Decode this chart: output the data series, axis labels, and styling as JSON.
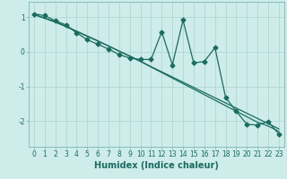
{
  "xlabel": "Humidex (Indice chaleur)",
  "background_color": "#ceecea",
  "grid_color": "#b0d8d4",
  "line_color": "#1a6b60",
  "x": [
    0,
    1,
    2,
    3,
    4,
    5,
    6,
    7,
    8,
    9,
    10,
    11,
    12,
    13,
    14,
    15,
    16,
    17,
    18,
    19,
    20,
    21,
    22,
    23
  ],
  "y_main": [
    1.1,
    1.05,
    0.9,
    0.78,
    0.55,
    0.35,
    0.22,
    0.08,
    -0.08,
    -0.18,
    -0.22,
    -0.22,
    0.58,
    -0.38,
    0.92,
    -0.32,
    -0.28,
    0.12,
    -1.32,
    -1.72,
    -2.1,
    -2.12,
    -2.02,
    -2.38
  ],
  "y_trend1": [
    1.08,
    0.98,
    0.87,
    0.74,
    0.6,
    0.46,
    0.32,
    0.17,
    0.02,
    -0.12,
    -0.27,
    -0.43,
    -0.58,
    -0.73,
    -0.88,
    -1.03,
    -1.18,
    -1.33,
    -1.48,
    -1.63,
    -1.78,
    -1.93,
    -2.08,
    -2.23
  ],
  "y_trend2": [
    1.08,
    0.97,
    0.86,
    0.73,
    0.59,
    0.45,
    0.31,
    0.17,
    0.02,
    -0.13,
    -0.28,
    -0.44,
    -0.6,
    -0.76,
    -0.92,
    -1.08,
    -1.24,
    -1.4,
    -1.56,
    -1.72,
    -1.88,
    -2.04,
    -2.15,
    -2.3
  ],
  "ylim": [
    -2.75,
    1.45
  ],
  "xlim": [
    -0.5,
    23.5
  ],
  "yticks": [
    -2,
    -1,
    0,
    1
  ],
  "xticks": [
    0,
    1,
    2,
    3,
    4,
    5,
    6,
    7,
    8,
    9,
    10,
    11,
    12,
    13,
    14,
    15,
    16,
    17,
    18,
    19,
    20,
    21,
    22,
    23
  ],
  "tick_fontsize": 5.5,
  "xlabel_fontsize": 7,
  "marker_size": 2.5,
  "line_width": 0.9
}
